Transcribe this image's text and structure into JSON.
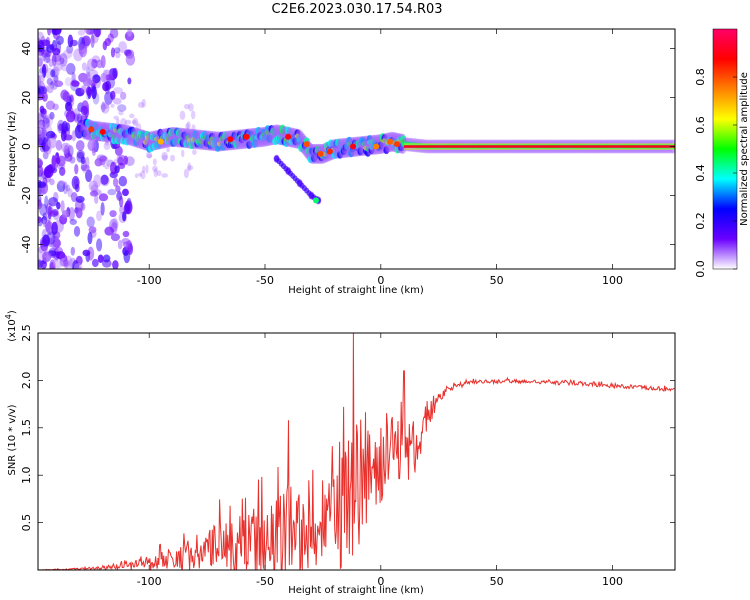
{
  "title": "C2E6.2023.030.17.54.R03",
  "chart_data": [
    {
      "type": "heatmap",
      "xlabel": "Height of straight line (km)",
      "ylabel": "Frequency (Hz)",
      "xlim": [
        -148,
        127
      ],
      "ylim": [
        -50,
        48
      ],
      "xticks": [
        -100,
        -50,
        0,
        50,
        100
      ],
      "yticks": [
        -40,
        -20,
        0,
        20,
        40
      ],
      "colorbar": {
        "label": "Normalized spectral amplitude",
        "range": [
          0,
          1
        ],
        "ticks": [
          "0.0",
          "0.2",
          "0.4",
          "0.6",
          "0.8"
        ],
        "colors": [
          "#ffffff",
          "#6a00ff",
          "#0000ff",
          "#00ffff",
          "#00ff00",
          "#ffff00",
          "#ff8000",
          "#ff0000",
          "#ff0066"
        ]
      },
      "ridge": {
        "x": [
          -128,
          -120,
          -110,
          -100,
          -90,
          -80,
          -70,
          -60,
          -50,
          -45,
          -40,
          -35,
          -30,
          -25,
          -20,
          -10,
          0,
          5,
          10,
          20,
          50,
          100,
          127
        ],
        "frequency_hz": [
          7,
          6,
          5,
          2,
          4,
          3,
          2,
          3,
          4,
          5,
          4,
          3,
          -3,
          -3,
          -1,
          0,
          1,
          2,
          1,
          0,
          0,
          0,
          0
        ]
      },
      "branch": {
        "x": [
          -45,
          -40,
          -35,
          -30,
          -27
        ],
        "frequency_hz": [
          -5,
          -10,
          -15,
          -20,
          -22
        ]
      }
    },
    {
      "type": "line",
      "xlabel": "Height of straight line (km)",
      "ylabel": "SNR (10 * v/v)",
      "yunit": "(x10^4)",
      "xlim": [
        -148,
        127
      ],
      "ylim": [
        0,
        2.5
      ],
      "xticks": [
        -100,
        -50,
        0,
        50,
        100
      ],
      "yticks": [
        0.5,
        1.0,
        1.5,
        2.0,
        2.5
      ],
      "series": [
        {
          "color": "#e8302c",
          "x": [
            -148,
            -130,
            -115,
            -105,
            -95,
            -85,
            -75,
            -65,
            -55,
            -45,
            -38,
            -30,
            -25,
            -20,
            -15,
            -12,
            -8,
            -4,
            0,
            5,
            10,
            15,
            20,
            25,
            30,
            40,
            50,
            60,
            70,
            80,
            90,
            100,
            110,
            120,
            127
          ],
          "values": [
            0.0,
            0.01,
            0.03,
            0.06,
            0.1,
            0.15,
            0.2,
            0.25,
            0.3,
            0.35,
            0.38,
            0.35,
            0.3,
            0.55,
            0.75,
            0.9,
            0.95,
            1.05,
            1.1,
            1.15,
            1.2,
            1.3,
            1.6,
            1.8,
            1.92,
            1.98,
            1.99,
            1.99,
            1.98,
            1.97,
            1.96,
            1.94,
            1.93,
            1.91,
            1.9
          ],
          "noise": [
            0.0,
            0.01,
            0.03,
            0.06,
            0.1,
            0.15,
            0.25,
            0.28,
            0.35,
            0.45,
            0.55,
            0.4,
            0.35,
            0.6,
            0.7,
            0.8,
            0.65,
            0.55,
            0.45,
            0.4,
            0.4,
            0.35,
            0.15,
            0.06,
            0.03,
            0.02,
            0.02,
            0.02,
            0.02,
            0.02,
            0.02,
            0.02,
            0.02,
            0.02,
            0.02
          ],
          "peaks": [
            {
              "x": -12,
              "value": 2.5
            },
            {
              "x": 10,
              "value": 2.1
            },
            {
              "x": -40,
              "value": 1.58
            },
            {
              "x": -16,
              "value": 1.72
            }
          ]
        }
      ]
    }
  ]
}
